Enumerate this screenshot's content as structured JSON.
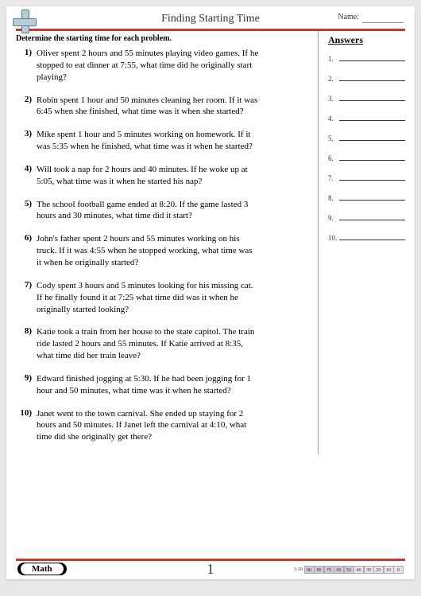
{
  "header": {
    "title": "Finding Starting Time",
    "name_label": "Name:"
  },
  "instruction": "Determine the starting time for each problem.",
  "problems": [
    {
      "n": "1)",
      "text": "Oliver spent 2 hours and 55 minutes playing video games. If he stopped to eat dinner at 7:55, what time did he originally start playing?"
    },
    {
      "n": "2)",
      "text": "Robin spent 1 hour and 50 minutes cleaning her room. If it was 6:45 when she finished, what time was it when she started?"
    },
    {
      "n": "3)",
      "text": "Mike spent 1 hour and 5 minutes working on homework. If it was 5:35 when he finished, what time was it when he started?"
    },
    {
      "n": "4)",
      "text": "Will took a nap for 2 hours and 40 minutes. If he woke up at 5:05, what time was it when he started his nap?"
    },
    {
      "n": "5)",
      "text": "The school football game ended at 8:20. If the game lasted 3 hours and 30 minutes, what time did it start?"
    },
    {
      "n": "6)",
      "text": "John's father spent 2 hours and 55 minutes working on his truck. If it was 4:55 when he stopped working, what time was it when he originally started?"
    },
    {
      "n": "7)",
      "text": "Cody spent 3 hours and 5 minutes looking for his missing cat. If he finally found it at 7:25 what time did was it when he originally started looking?"
    },
    {
      "n": "8)",
      "text": "Katie took a train from her house to the state capitol. The train ride lasted 2 hours and 55 minutes. If Katie arrived at 8:35, what time did her train leave?"
    },
    {
      "n": "9)",
      "text": "Edward finished jogging at 5:30. If he had been jogging for 1 hour and 50 minutes, what time was it when he started?"
    },
    {
      "n": "10)",
      "text": "Janet went to the town carnival. She ended up staying for 2 hours and 50 minutes. If Janet left the carnival at 4:10, what time did she originally get there?"
    }
  ],
  "answers": {
    "title": "Answers",
    "items": [
      "1.",
      "2.",
      "3.",
      "4.",
      "5.",
      "6.",
      "7.",
      "8.",
      "9.",
      "10."
    ]
  },
  "footer": {
    "math_label": "Math",
    "page_number": "1",
    "score_prefix": "1-10",
    "score_cells": [
      "90",
      "80",
      "70",
      "60",
      "50",
      "40",
      "30",
      "20",
      "10",
      "0"
    ]
  },
  "colors": {
    "accent_red": "#c73a30",
    "cross_fill": "#b8cdd9",
    "cross_border": "#5a7a8a"
  }
}
